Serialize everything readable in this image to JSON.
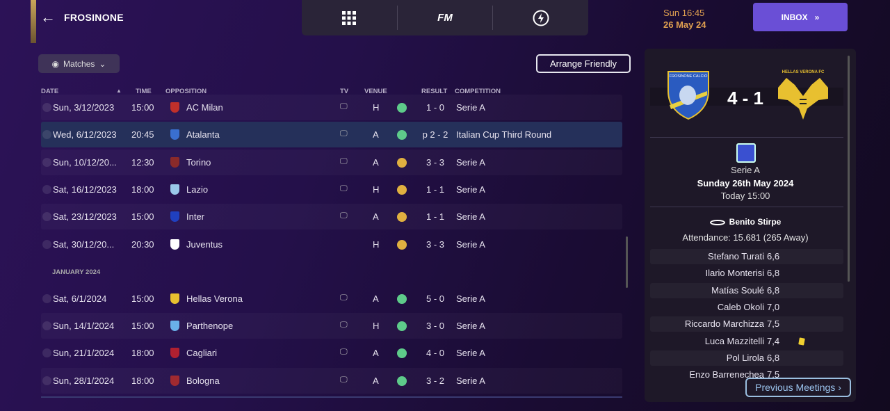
{
  "header": {
    "club": "FROSINONE",
    "nav": [
      "grid-icon",
      "FM",
      "lightning-icon"
    ],
    "time": "Sun 16:45",
    "date": "26 May 24",
    "inbox": "INBOX"
  },
  "toolbar": {
    "filter": "Matches",
    "arrange": "Arrange Friendly"
  },
  "table": {
    "columns": {
      "date": "DATE",
      "time": "TIME",
      "opposition": "OPPOSITION",
      "tv": "TV",
      "venue": "VENUE",
      "result": "RESULT",
      "competition": "COMPETITION"
    },
    "rows": [
      {
        "date": "Sun, 3/12/2023",
        "time": "15:00",
        "opp": "AC Milan",
        "crest": "#c0302a",
        "tv": true,
        "venue": "H",
        "outcome": "win",
        "result": "1 - 0",
        "comp": "Serie A"
      },
      {
        "date": "Wed, 6/12/2023",
        "time": "20:45",
        "opp": "Atalanta",
        "crest": "#3a6fd0",
        "tv": true,
        "venue": "A",
        "outcome": "win",
        "result": "p 2 - 2",
        "comp": "Italian Cup Third Round"
      },
      {
        "date": "Sun, 10/12/20...",
        "time": "12:30",
        "opp": "Torino",
        "crest": "#8a2a2a",
        "tv": true,
        "venue": "A",
        "outcome": "draw",
        "result": "3 - 3",
        "comp": "Serie A"
      },
      {
        "date": "Sat, 16/12/2023",
        "time": "18:00",
        "opp": "Lazio",
        "crest": "#9ac8ea",
        "tv": true,
        "venue": "H",
        "outcome": "draw",
        "result": "1 - 1",
        "comp": "Serie A"
      },
      {
        "date": "Sat, 23/12/2023",
        "time": "15:00",
        "opp": "Inter",
        "crest": "#2040c0",
        "tv": true,
        "venue": "A",
        "outcome": "draw",
        "result": "1 - 1",
        "comp": "Serie A"
      },
      {
        "date": "Sat, 30/12/20...",
        "time": "20:30",
        "opp": "Juventus",
        "crest": "#ffffff",
        "tv": false,
        "venue": "H",
        "outcome": "draw",
        "result": "3 - 3",
        "comp": "Serie A"
      },
      {
        "section": "JANUARY 2024"
      },
      {
        "date": "Sat, 6/1/2024",
        "time": "15:00",
        "opp": "Hellas Verona",
        "crest": "#e8c030",
        "tv": true,
        "venue": "A",
        "outcome": "win",
        "result": "5 - 0",
        "comp": "Serie A"
      },
      {
        "date": "Sun, 14/1/2024",
        "time": "15:00",
        "opp": "Parthenope",
        "crest": "#6ab0e8",
        "tv": true,
        "venue": "H",
        "outcome": "win",
        "result": "3 - 0",
        "comp": "Serie A"
      },
      {
        "date": "Sun, 21/1/2024",
        "time": "18:00",
        "opp": "Cagliari",
        "crest": "#b02030",
        "tv": true,
        "venue": "A",
        "outcome": "win",
        "result": "4 - 0",
        "comp": "Serie A"
      },
      {
        "date": "Sun, 28/1/2024",
        "time": "18:00",
        "opp": "Bologna",
        "crest": "#a02a30",
        "tv": true,
        "venue": "A",
        "outcome": "win",
        "result": "3 - 2",
        "comp": "Serie A"
      }
    ]
  },
  "colors": {
    "win": "#5ecb8a",
    "draw": "#e0b040",
    "accent": "#6a4fd6"
  },
  "match": {
    "home_crest_text": "FROSINONE CALCIO",
    "away_crest_text": "HELLAS VERONA FC",
    "score": "4 - 1",
    "competition": "Serie A",
    "date": "Sunday 26th May 2024",
    "kickoff": "Today 15:00",
    "stadium": "Benito Stirpe",
    "attendance": "Attendance: 15.681 (265 Away)",
    "players": [
      {
        "name": "Stefano Turati",
        "rating": "6,6"
      },
      {
        "name": "Ilario Monterisi",
        "rating": "6,8"
      },
      {
        "name": "Matías Soulé",
        "rating": "6,8"
      },
      {
        "name": "Caleb Okoli",
        "rating": "7,0"
      },
      {
        "name": "Riccardo Marchizza",
        "rating": "7,5"
      },
      {
        "name": "Luca Mazzitelli",
        "rating": "7,4",
        "card": "yellow"
      },
      {
        "name": "Pol Lirola",
        "rating": "6,8"
      },
      {
        "name": "Enzo Barrenechea",
        "rating": "7,5"
      }
    ],
    "previous": "Previous Meetings"
  }
}
